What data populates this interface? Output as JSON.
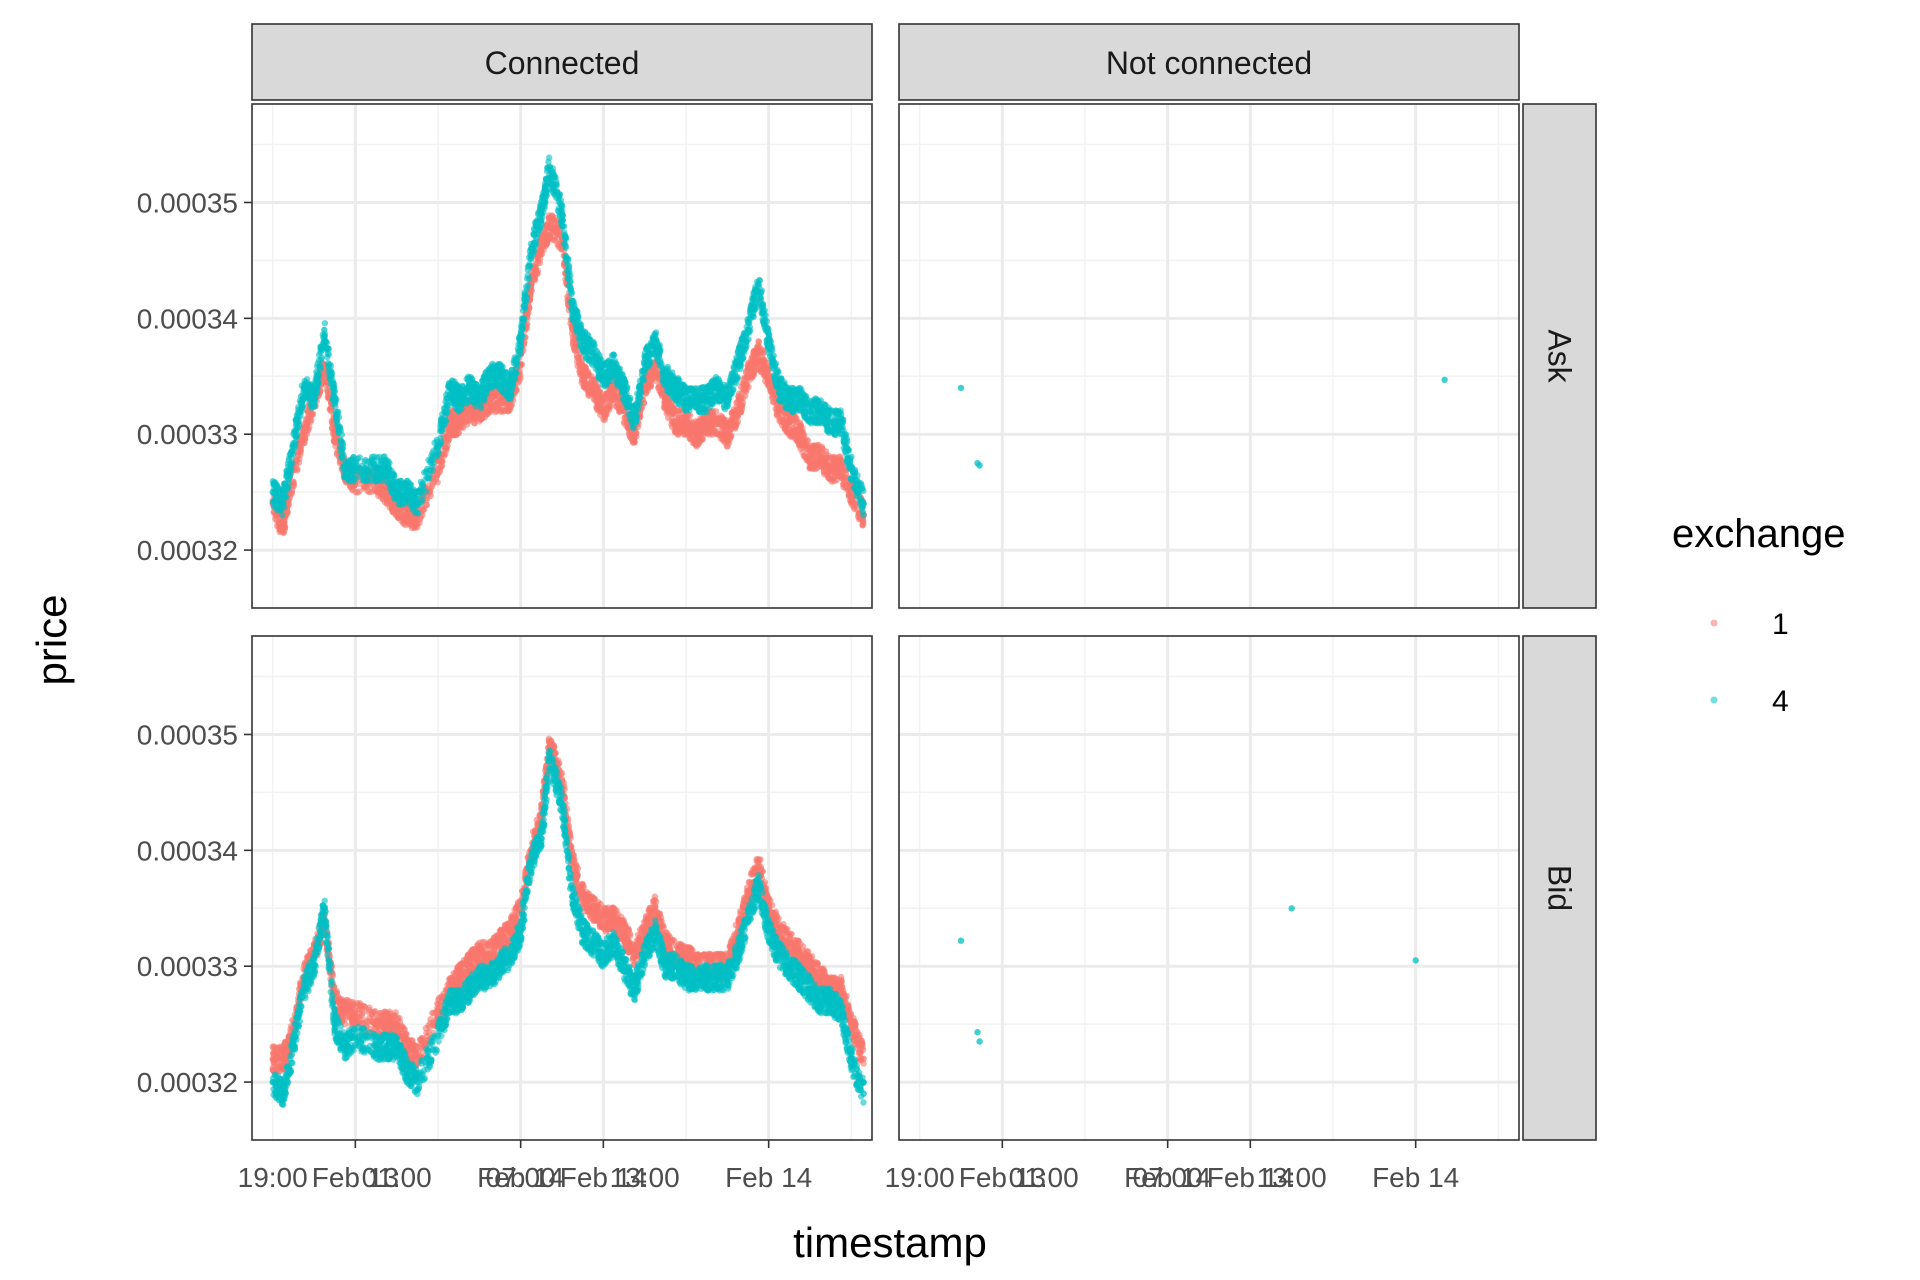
{
  "chart_data": {
    "type": "scatter",
    "facet_cols": [
      "Connected",
      "Not connected"
    ],
    "facet_rows": [
      "Ask",
      "Bid"
    ],
    "xlabel": "timestamp",
    "ylabel": "price",
    "x_range_hours": [
      0,
      30
    ],
    "x_tick_labels": [
      {
        "label": "19:00",
        "hour": 1
      },
      {
        "label": "Feb 13",
        "hour": 5
      },
      {
        "label": "01:00",
        "hour": 7
      },
      {
        "label": "Feb 14",
        "hour": 13
      },
      {
        "label": "07:00",
        "hour": 13
      },
      {
        "label": "Feb 14",
        "hour": 17
      },
      {
        "label": "13:00",
        "hour": 19
      },
      {
        "label": "Feb 14",
        "hour": 25
      }
    ],
    "x_major_hours": [
      5,
      13,
      17,
      25
    ],
    "x_minor_hours": [
      1,
      9,
      21,
      29
    ],
    "y_range": [
      0.000315,
      0.0003585
    ],
    "y_ticks": [
      0.00032,
      0.00033,
      0.00034,
      0.00035
    ],
    "y_tick_labels": [
      "0.00032",
      "0.00033",
      "0.00034",
      "0.00035"
    ],
    "legend": {
      "title": "exchange",
      "position": "right"
    },
    "grid": true,
    "series": [
      {
        "name": "1",
        "color": "#F8766D"
      },
      {
        "name": "4",
        "color": "#00BFC4"
      }
    ],
    "panels": [
      {
        "col": "Connected",
        "row": "Ask",
        "series": [
          {
            "name": "1",
            "x": [
              1.0,
              1.5,
              1.8,
              2.5,
              3.0,
              3.5,
              4.0,
              4.5,
              5.0,
              6.0,
              6.5,
              7.0,
              7.5,
              8.0,
              9.0,
              9.6,
              10.0,
              10.5,
              11.0,
              11.5,
              12.0,
              12.5,
              13.0,
              13.5,
              14.0,
              14.4,
              15.0,
              15.5,
              16.0,
              16.5,
              17.0,
              17.5,
              18.0,
              18.5,
              19.0,
              19.5,
              20.0,
              20.5,
              21.0,
              21.5,
              22.0,
              22.5,
              23.0,
              23.5,
              24.0,
              24.5,
              25.0,
              25.5,
              26.0,
              26.5,
              27.0,
              27.5,
              28.0,
              28.5,
              29.0,
              29.6
            ],
            "y": [
              0.000324,
              0.000322,
              0.000325,
              0.00033,
              0.000333,
              0.000336,
              0.00033,
              0.000327,
              0.000326,
              0.000326,
              0.000325,
              0.000324,
              0.000323,
              0.000323,
              0.000327,
              0.000331,
              0.000331,
              0.000332,
              0.000332,
              0.000333,
              0.000333,
              0.000333,
              0.000336,
              0.000343,
              0.000346,
              0.000348,
              0.000347,
              0.000339,
              0.000335,
              0.000334,
              0.000332,
              0.000334,
              0.000332,
              0.00033,
              0.000334,
              0.000336,
              0.000333,
              0.000331,
              0.000331,
              0.00033,
              0.000331,
              0.000331,
              0.00033,
              0.000332,
              0.000335,
              0.000337,
              0.000335,
              0.000332,
              0.000331,
              0.00033,
              0.000328,
              0.000328,
              0.000327,
              0.000327,
              0.000325,
              0.000323
            ]
          },
          {
            "name": "4",
            "x": [
              1.0,
              1.5,
              2.0,
              2.5,
              3.0,
              3.5,
              4.0,
              4.5,
              5.0,
              6.0,
              6.5,
              7.0,
              7.5,
              8.0,
              9.0,
              9.6,
              10.0,
              10.5,
              11.0,
              11.5,
              12.0,
              12.5,
              13.0,
              13.5,
              14.0,
              14.4,
              15.0,
              15.5,
              16.0,
              16.5,
              17.0,
              17.5,
              18.0,
              18.5,
              19.0,
              19.5,
              20.0,
              20.5,
              21.0,
              21.5,
              22.0,
              22.5,
              23.0,
              23.5,
              24.0,
              24.5,
              25.0,
              25.5,
              26.0,
              26.5,
              27.0,
              27.5,
              28.0,
              28.5,
              29.0,
              29.6
            ],
            "y": [
              0.000325,
              0.000324,
              0.000329,
              0.000334,
              0.000333,
              0.000339,
              0.000333,
              0.000327,
              0.000327,
              0.000327,
              0.000327,
              0.000325,
              0.000325,
              0.000324,
              0.000329,
              0.000334,
              0.000333,
              0.000334,
              0.000333,
              0.000335,
              0.000335,
              0.000334,
              0.000338,
              0.000346,
              0.000349,
              0.000353,
              0.000349,
              0.000341,
              0.000338,
              0.000337,
              0.000335,
              0.000336,
              0.000334,
              0.000331,
              0.000336,
              0.000338,
              0.000335,
              0.000334,
              0.000333,
              0.000333,
              0.000333,
              0.000334,
              0.000333,
              0.000336,
              0.000339,
              0.000343,
              0.000338,
              0.000334,
              0.000333,
              0.000333,
              0.000332,
              0.000332,
              0.000331,
              0.000331,
              0.000327,
              0.000324
            ]
          }
        ]
      },
      {
        "col": "Not connected",
        "row": "Ask",
        "series": [
          {
            "name": "4",
            "x": [
              3.0,
              3.8,
              3.9,
              26.4
            ],
            "y": [
              0.000334,
              0.0003275,
              0.0003273,
              0.0003347
            ]
          }
        ]
      },
      {
        "col": "Connected",
        "row": "Bid",
        "series": [
          {
            "name": "1",
            "x": [
              1.0,
              1.5,
              1.8,
              2.5,
              3.0,
              3.5,
              4.0,
              4.5,
              5.0,
              6.0,
              6.5,
              7.0,
              7.5,
              8.0,
              9.0,
              9.6,
              10.0,
              10.5,
              11.0,
              11.5,
              12.0,
              12.5,
              13.0,
              13.5,
              14.0,
              14.4,
              15.0,
              15.5,
              16.0,
              16.5,
              17.0,
              17.5,
              18.0,
              18.5,
              19.0,
              19.5,
              20.0,
              20.5,
              21.0,
              21.5,
              22.0,
              22.5,
              23.0,
              23.5,
              24.0,
              24.5,
              25.0,
              25.5,
              26.0,
              26.5,
              27.0,
              27.5,
              28.0,
              28.5,
              29.0,
              29.6
            ],
            "y": [
              0.000322,
              0.000322,
              0.000323,
              0.000329,
              0.000331,
              0.000334,
              0.000327,
              0.000326,
              0.000326,
              0.000325,
              0.000325,
              0.000325,
              0.000323,
              0.000322,
              0.000326,
              0.000328,
              0.000329,
              0.00033,
              0.000331,
              0.000331,
              0.000332,
              0.000333,
              0.000335,
              0.00034,
              0.000343,
              0.000349,
              0.000346,
              0.000339,
              0.000336,
              0.000335,
              0.000334,
              0.000334,
              0.000333,
              0.000331,
              0.000333,
              0.000335,
              0.000332,
              0.000331,
              0.000331,
              0.00033,
              0.00033,
              0.00033,
              0.00033,
              0.000333,
              0.000336,
              0.000339,
              0.000335,
              0.000333,
              0.000332,
              0.000331,
              0.00033,
              0.000329,
              0.000328,
              0.000328,
              0.000325,
              0.000322
            ]
          },
          {
            "name": "4",
            "x": [
              1.0,
              1.5,
              2.0,
              2.5,
              3.0,
              3.5,
              4.0,
              4.5,
              5.0,
              6.0,
              6.5,
              7.0,
              7.5,
              8.0,
              9.0,
              9.6,
              10.0,
              10.5,
              11.0,
              11.5,
              12.0,
              12.5,
              13.0,
              13.5,
              14.0,
              14.4,
              15.0,
              15.5,
              16.0,
              16.5,
              17.0,
              17.5,
              18.0,
              18.5,
              19.0,
              19.5,
              20.0,
              20.5,
              21.0,
              21.5,
              22.0,
              22.5,
              23.0,
              23.5,
              24.0,
              24.5,
              25.0,
              25.5,
              26.0,
              26.5,
              27.0,
              27.5,
              28.0,
              28.5,
              29.0,
              29.6
            ],
            "y": [
              0.00032,
              0.000319,
              0.000323,
              0.000328,
              0.00033,
              0.000335,
              0.000325,
              0.000323,
              0.000324,
              0.000323,
              0.000323,
              0.000323,
              0.000321,
              0.00032,
              0.000324,
              0.000327,
              0.000327,
              0.000328,
              0.000329,
              0.000329,
              0.00033,
              0.000331,
              0.000333,
              0.000339,
              0.000341,
              0.000348,
              0.000344,
              0.000336,
              0.000333,
              0.000332,
              0.000331,
              0.000332,
              0.00033,
              0.000328,
              0.000331,
              0.000333,
              0.00033,
              0.00033,
              0.000329,
              0.000329,
              0.000329,
              0.000329,
              0.000329,
              0.000331,
              0.000334,
              0.000337,
              0.000333,
              0.000331,
              0.00033,
              0.000329,
              0.000328,
              0.000327,
              0.000327,
              0.000326,
              0.000322,
              0.000319
            ]
          }
        ]
      },
      {
        "col": "Not connected",
        "row": "Bid",
        "series": [
          {
            "name": "4",
            "x": [
              3.0,
              3.8,
              3.9,
              19.0,
              25.0
            ],
            "y": [
              0.0003322,
              0.0003243,
              0.0003235,
              0.000335,
              0.0003305
            ]
          }
        ]
      }
    ]
  }
}
